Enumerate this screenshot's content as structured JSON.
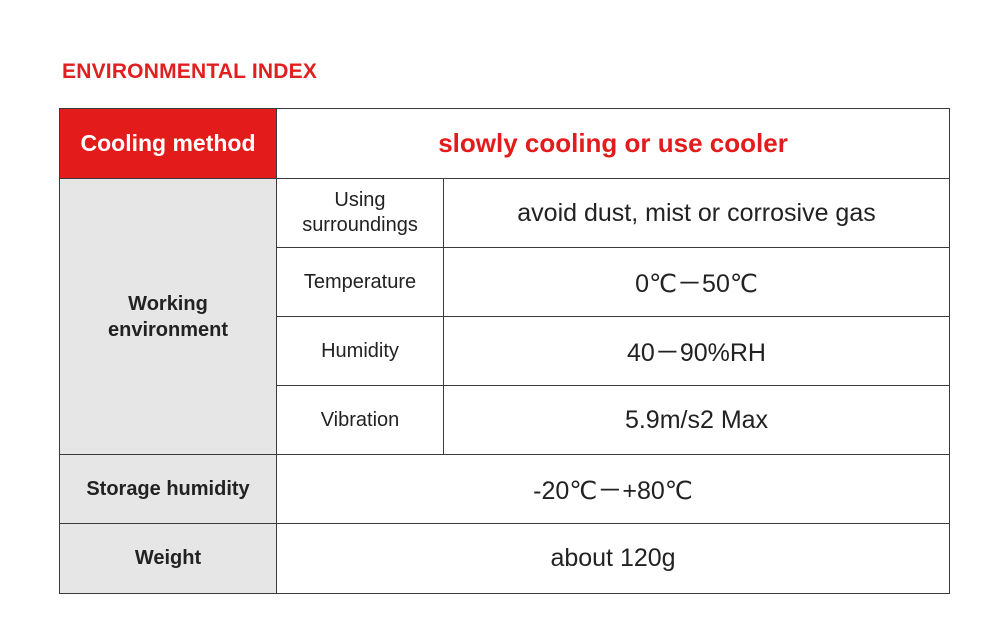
{
  "title": "ENVIRONMENTAL INDEX",
  "cooling": {
    "label": "Cooling method",
    "value": "slowly cooling or use cooler"
  },
  "working": {
    "label": "Working environment",
    "rows": [
      {
        "label": "Using surroundings",
        "value": "avoid dust, mist or corrosive gas"
      },
      {
        "label": "Temperature",
        "value": "0℃－50℃"
      },
      {
        "label": "Humidity",
        "value": "40－90%RH"
      },
      {
        "label": "Vibration",
        "value": "5.9m/s2 Max"
      }
    ]
  },
  "storage": {
    "label": "Storage humidity",
    "value": "-20℃－+80℃"
  },
  "weight": {
    "label": "Weight",
    "value": "about 120g"
  },
  "colors": {
    "accent_red": "#e31b1b",
    "label_gray": "#e6e6e6"
  }
}
